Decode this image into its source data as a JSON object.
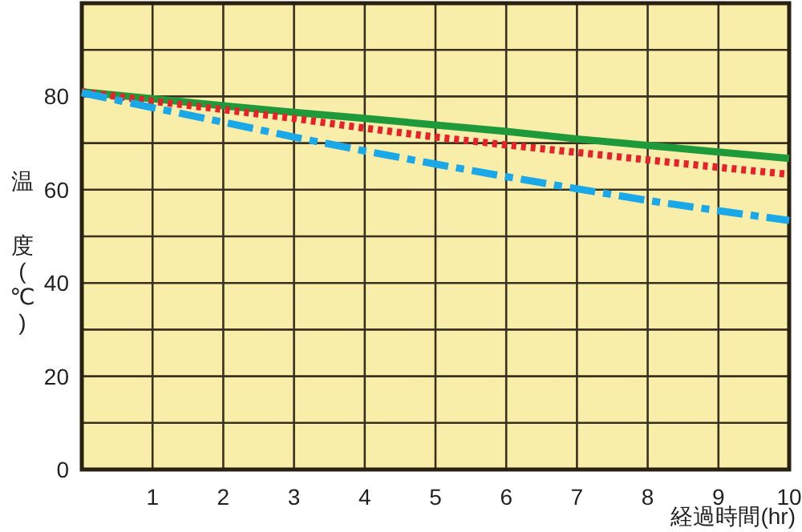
{
  "chart_data": {
    "type": "line",
    "xlabel": "経過時間(hr)",
    "ylabel": "温度(℃)",
    "x": [
      0,
      1,
      2,
      3,
      4,
      5,
      6,
      7,
      8,
      9,
      10
    ],
    "xlim": [
      0,
      10
    ],
    "ylim": [
      0,
      100
    ],
    "xticks": [
      1,
      2,
      3,
      4,
      5,
      6,
      7,
      8,
      9,
      10
    ],
    "yticks": [
      0,
      {
        "value": 10,
        "label": null
      },
      20,
      {
        "value": 30,
        "label": null
      },
      40,
      {
        "value": 50,
        "label": null
      },
      60,
      {
        "value": 70,
        "label": null
      },
      80,
      {
        "value": 90,
        "label": null
      }
    ],
    "grid": true,
    "series": [
      {
        "color": "#1f9a3a",
        "line_style": "solid",
        "values": [
          81,
          79.5,
          78,
          76.6,
          75.3,
          73.9,
          72.5,
          70.9,
          69.5,
          68.1,
          66.7
        ]
      },
      {
        "color": "#e8202a",
        "line_style": "dotted",
        "values": [
          81,
          79,
          77.2,
          75.3,
          73.2,
          71.3,
          69.6,
          68,
          66.4,
          64.8,
          63.3
        ]
      },
      {
        "color": "#1aa8e8",
        "line_style": "dashdot",
        "values": [
          80.8,
          77.6,
          74.5,
          71.3,
          68.3,
          65.5,
          62.8,
          60.2,
          57.7,
          55.5,
          53.4
        ]
      }
    ]
  }
}
